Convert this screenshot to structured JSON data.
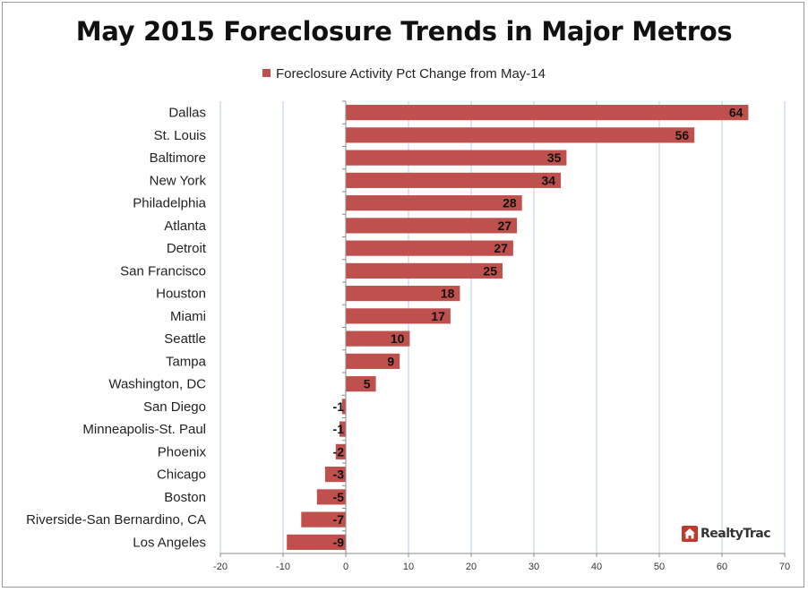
{
  "chart_data": {
    "type": "bar",
    "orientation": "horizontal",
    "title": "May 2015 Foreclosure Trends in Major Metros",
    "legend_position": "top-center",
    "grid": true,
    "xlim": [
      -20,
      70
    ],
    "x_ticks": [
      -20,
      -10,
      0,
      10,
      20,
      30,
      40,
      50,
      60,
      70
    ],
    "bar_color": "#c0504d",
    "gridline_color": "#b9cde5",
    "categories": [
      "Dallas",
      "St. Louis",
      "Baltimore",
      "New York",
      "Philadelphia",
      "Atlanta",
      "Detroit",
      "San Francisco",
      "Houston",
      "Miami",
      "Seattle",
      "Tampa",
      "Washington, DC",
      "San Diego",
      "Minneapolis-St. Paul",
      "Phoenix",
      "Chicago",
      "Boston",
      "Riverside-San Bernardino, CA",
      "Los Angeles"
    ],
    "series": [
      {
        "name": "Foreclosure Activity Pct Change from May-14",
        "values": [
          64.2,
          55.6,
          35.2,
          34.3,
          28.1,
          27.3,
          26.7,
          25.0,
          18.2,
          16.7,
          10.2,
          8.6,
          4.8,
          -0.6,
          -1.0,
          -1.6,
          -3.3,
          -4.6,
          -7.1,
          -9.4
        ],
        "labels": [
          "64",
          "56",
          "35",
          "34",
          "28",
          "27",
          "27",
          "25",
          "18",
          "17",
          "10",
          "9",
          "5",
          "-1",
          "-1",
          "-2",
          "-3",
          "-5",
          "-7",
          "-9"
        ]
      }
    ]
  },
  "logo": {
    "text": "RealtyTrac"
  }
}
